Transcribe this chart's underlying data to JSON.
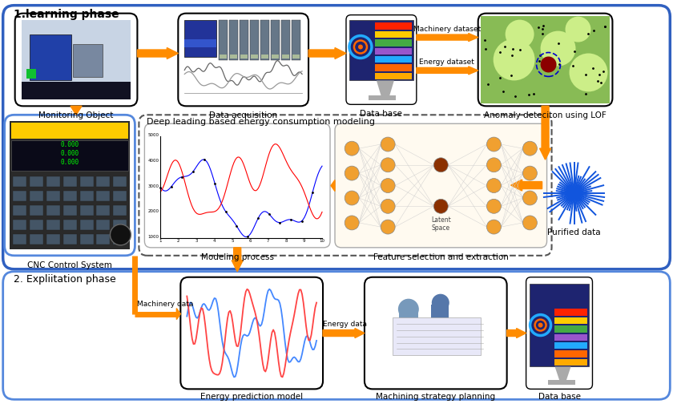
{
  "bg_color": "#ffffff",
  "border_blue": "#3060c0",
  "border_blue2": "#5588dd",
  "orange": "#FF8C00",
  "title_learning": "1.learning phase",
  "title_exploitation": "2. Expliitation phase",
  "label_monitoring": "Monitoring Object",
  "label_data_acq": "Data acquisition",
  "label_database": "Data base",
  "label_anomaly": "Anomaly deteciton using LOF",
  "label_cnc": "CNC Control System",
  "label_modeling": "Modeling process",
  "label_feature": "Feature selection and extraction",
  "label_purified": "Purified data",
  "label_deep": "Deep leading based energy consumption modeling",
  "label_energy_pred": "Energy prediction model",
  "label_machining": "Machining strategy planning",
  "label_database2": "Data base",
  "label_machinery_dataset": "Machinery dataset",
  "label_energy_dataset": "Energy dataset",
  "label_machinery_data": "Machinery data",
  "label_energy_data": "Energy data",
  "latent_space": "Latent\nSpace"
}
